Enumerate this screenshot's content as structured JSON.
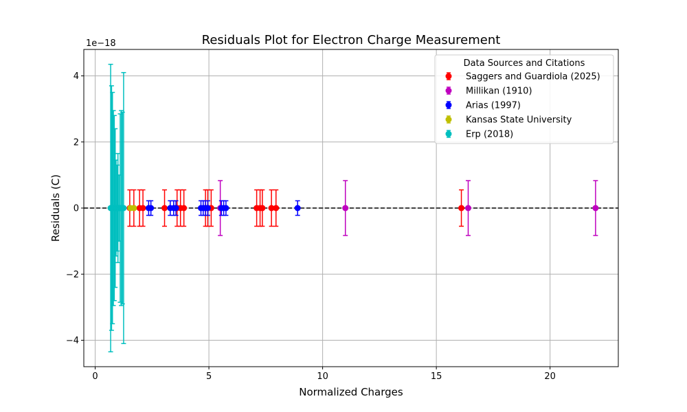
{
  "chart_data": {
    "type": "scatter",
    "title": "Residuals Plot for Electron Charge Measurement",
    "xlabel": "Normalized Charges",
    "ylabel": "Residuals (C)",
    "y_offset_label": "1e−18",
    "xlim": [
      -0.5,
      23
    ],
    "ylim": [
      -4.8,
      4.8
    ],
    "x_ticks": [
      0,
      5,
      10,
      15,
      20
    ],
    "y_ticks": [
      -4,
      -2,
      0,
      2,
      4
    ],
    "x_tick_labels": [
      "0",
      "5",
      "10",
      "15",
      "20"
    ],
    "y_tick_labels": [
      "−4",
      "−2",
      "0",
      "2",
      "4"
    ],
    "grid": true,
    "reference_line": {
      "y": 0,
      "style": "dashed",
      "color": "#000000"
    },
    "legend": {
      "title": "Data Sources and Citations",
      "placement": "top-right"
    },
    "series": [
      {
        "name": "Saggers and Guardiola (2025)",
        "color": "#ff0000",
        "x": [
          1.52,
          1.7,
          1.95,
          2.1,
          3.05,
          3.6,
          3.75,
          3.9,
          4.85,
          4.95,
          5.1,
          7.1,
          7.25,
          7.35,
          7.75,
          7.95,
          16.1
        ],
        "y": [
          0,
          0,
          0,
          0,
          0,
          0,
          0,
          0,
          0,
          0,
          0,
          0,
          0,
          0,
          0,
          0,
          0
        ],
        "err": [
          0.55,
          0.55,
          0.55,
          0.55,
          0.55,
          0.55,
          0.55,
          0.55,
          0.55,
          0.55,
          0.55,
          0.55,
          0.55,
          0.55,
          0.55,
          0.55,
          0.55
        ]
      },
      {
        "name": "Millikan (1910)",
        "color": "#bf00bf",
        "x": [
          5.5,
          11.0,
          16.4,
          22.0
        ],
        "y": [
          0,
          0,
          0,
          0
        ],
        "err": [
          0.83,
          0.83,
          0.83,
          0.83
        ]
      },
      {
        "name": "Arias (1997)",
        "color": "#0000ff",
        "x": [
          2.35,
          2.45,
          3.3,
          3.45,
          3.55,
          4.65,
          4.75,
          4.85,
          4.95,
          5.55,
          5.65,
          5.75,
          8.9
        ],
        "y": [
          0,
          0,
          0,
          0,
          0,
          0,
          0,
          0,
          0,
          0,
          0,
          0,
          0
        ],
        "err": [
          0.22,
          0.22,
          0.22,
          0.22,
          0.22,
          0.22,
          0.22,
          0.22,
          0.22,
          0.22,
          0.22,
          0.22,
          0.22
        ]
      },
      {
        "name": "Kansas State University",
        "color": "#bfbf00",
        "x": [
          0.9,
          1.55,
          1.7
        ],
        "y": [
          0,
          0,
          0
        ],
        "err": [
          0,
          0,
          0
        ]
      },
      {
        "name": "Erp (2018)",
        "color": "#00bfbf",
        "x": [
          0.68,
          0.72,
          0.76,
          0.8,
          0.84,
          0.88,
          0.92,
          0.96,
          1.0,
          1.05,
          1.1,
          1.15,
          1.2,
          1.25
        ],
        "y": [
          0,
          0,
          0,
          0,
          0,
          0,
          0,
          0,
          0,
          0,
          0,
          0,
          0,
          0
        ],
        "err": [
          4.35,
          3.7,
          3.5,
          2.95,
          2.8,
          2.4,
          1.45,
          1.3,
          1.65,
          1.0,
          2.85,
          2.95,
          2.9,
          4.1
        ]
      }
    ]
  }
}
